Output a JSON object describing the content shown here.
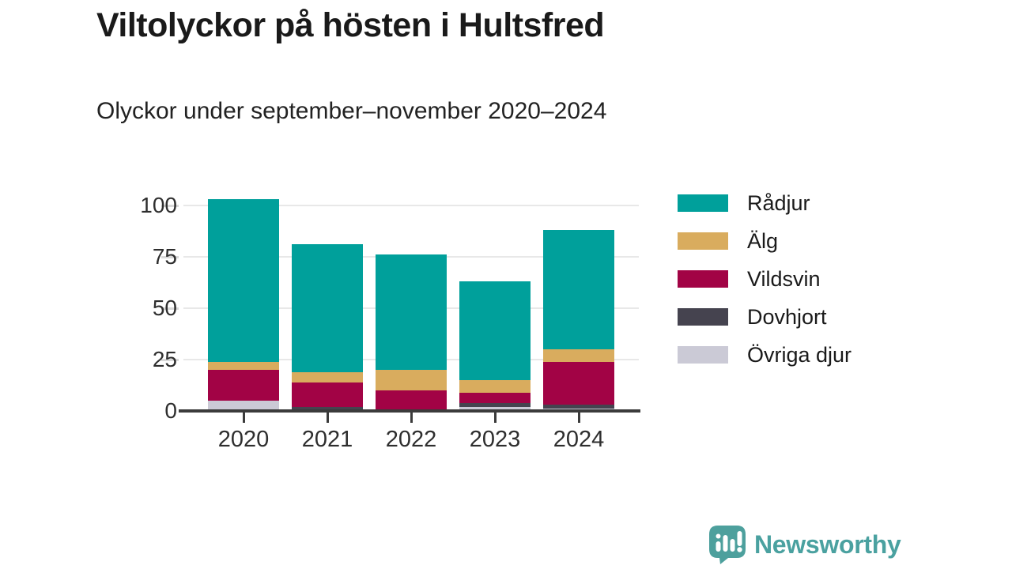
{
  "title": "Viltolyckor på hösten i Hultsfred",
  "subtitle": "Olyckor under september–november 2020–2024",
  "chart_data": {
    "type": "bar",
    "stacked": true,
    "title": "Viltolyckor på hösten i Hultsfred",
    "subtitle": "Olyckor under september–november 2020–2024",
    "categories": [
      "2020",
      "2021",
      "2022",
      "2023",
      "2024"
    ],
    "series": [
      {
        "name": "Rådjur",
        "color": "#00a09b",
        "values": [
          79,
          62,
          56,
          48,
          58
        ]
      },
      {
        "name": "Älg",
        "color": "#d9ac5e",
        "values": [
          4,
          5,
          10,
          6,
          6
        ]
      },
      {
        "name": "Vildsvin",
        "color": "#a20345",
        "values": [
          15,
          12,
          10,
          5,
          21
        ]
      },
      {
        "name": "Dovhjort",
        "color": "#45434f",
        "values": [
          0,
          2,
          0,
          2,
          2
        ]
      },
      {
        "name": "Övriga djur",
        "color": "#cbcad6",
        "values": [
          5,
          0,
          0,
          2,
          1
        ]
      }
    ],
    "totals": [
      103,
      81,
      76,
      63,
      88
    ],
    "stack_order_bottom_to_top": [
      "Övriga djur",
      "Dovhjort",
      "Vildsvin",
      "Älg",
      "Rådjur"
    ],
    "xlabel": "",
    "ylabel": "",
    "ylim": [
      0,
      100
    ],
    "yticks": [
      0,
      25,
      50,
      75,
      100
    ],
    "grid": "horizontal",
    "legend_position": "right"
  },
  "colors": {
    "axis": "#3b3b3b",
    "gridline": "#e8e8e8",
    "tick_light": "#d9d9d9",
    "text_dark": "#1a1a1a",
    "text_medium": "#2e2e2e",
    "brand_teal": "#4aa1a0"
  },
  "footer": {
    "brand": "Newsworthy",
    "logo_icon": "newsworthy-speech-bubble-chart-icon"
  }
}
